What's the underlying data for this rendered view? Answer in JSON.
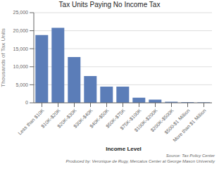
{
  "chart_data": {
    "type": "bar",
    "title": "Tax Units Paying No Income Tax",
    "xlabel": "Income Level",
    "ylabel": "Thousands of Tax Units",
    "categories": [
      "Less than $10K",
      "$10K-$20K",
      "$20K-$30K",
      "$30K-$40K",
      "$40K-$50K",
      "$50K-$75K",
      "$75K-$100K",
      "$100K-$200K",
      "$200K-$500K",
      "$500-$1 Million",
      "More than $1 Million"
    ],
    "values": [
      18800,
      20800,
      12700,
      7400,
      4500,
      4500,
      1400,
      900,
      300,
      200,
      150
    ],
    "color": "#5B7DB8",
    "ylim": [
      0,
      25000
    ],
    "yticks": [
      0,
      {
        "value": 5000,
        "label": "5,000"
      },
      {
        "value": 10000,
        "label": "10,000"
      },
      {
        "value": 15000,
        "label": "15,000"
      },
      {
        "value": 20000,
        "label": "20,000"
      },
      {
        "value": 25000,
        "label": "25,000"
      }
    ],
    "grid": true,
    "annotations": [
      "Source: Tax Policy Center",
      "Produced by: Veronique de Rugy, Mercatus Center at George Mason University"
    ]
  }
}
